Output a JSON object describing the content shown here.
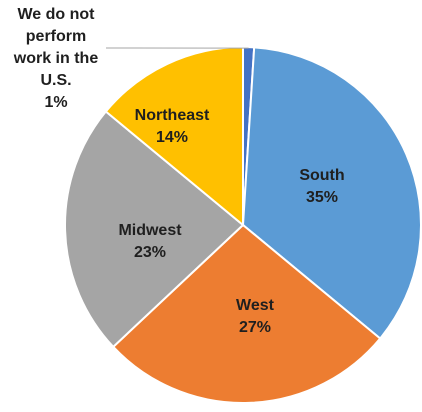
{
  "chart_data": {
    "type": "pie",
    "slices": [
      {
        "label": "We do not perform work in the U.S.",
        "label_lines": [
          "We do not",
          "perform",
          "work in the",
          "U.S."
        ],
        "value": 1,
        "value_label": "1%",
        "color": "#4472C4"
      },
      {
        "label": "South",
        "label_lines": [
          "South"
        ],
        "value": 35,
        "value_label": "35%",
        "color": "#5B9BD5"
      },
      {
        "label": "West",
        "label_lines": [
          "West"
        ],
        "value": 27,
        "value_label": "27%",
        "color": "#ED7D31"
      },
      {
        "label": "Midwest",
        "label_lines": [
          "Midwest"
        ],
        "value": 23,
        "value_label": "23%",
        "color": "#A5A5A5"
      },
      {
        "label": "Northeast",
        "label_lines": [
          "Northeast"
        ],
        "value": 14,
        "value_label": "14%",
        "color": "#FFC000"
      }
    ],
    "start": "12 o'clock",
    "direction": "clockwise",
    "legend": "none"
  }
}
